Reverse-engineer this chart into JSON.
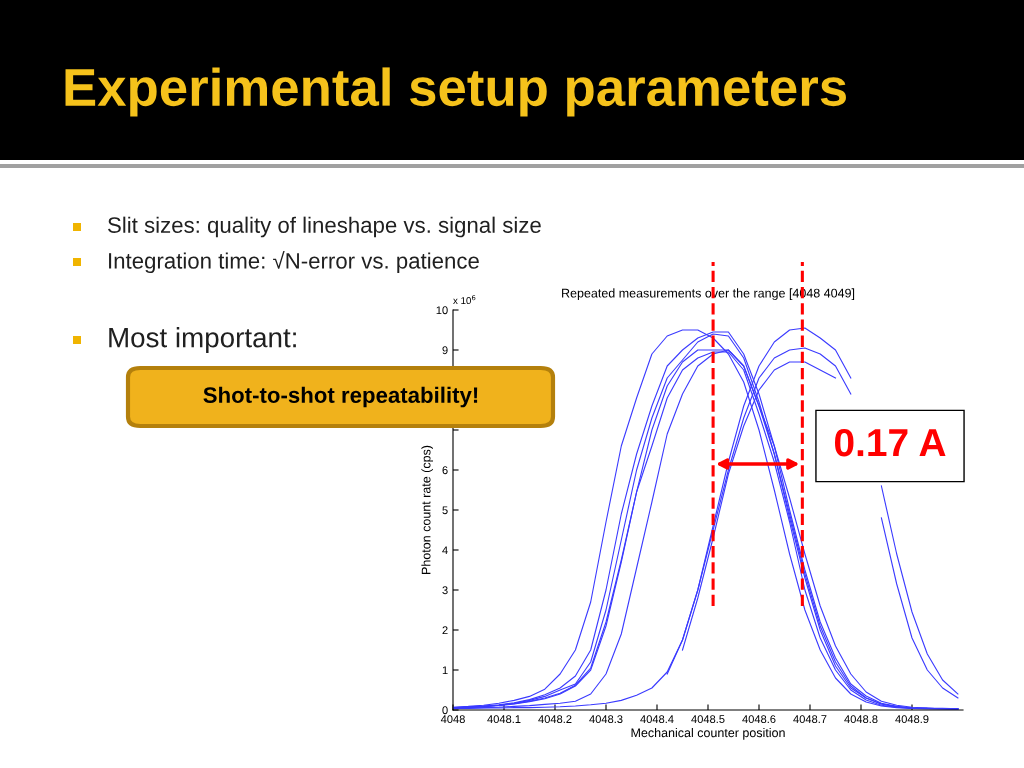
{
  "chart_data": {
    "type": "line",
    "title": "Experimental setup parameters",
    "subtitle": "Repeated measurements over the range [4048 4049]",
    "xlabel": "Mechanical counter position",
    "ylabel": "Photon count rate (cps)",
    "annotations": [
      "Slit sizes: quality of lineshape vs. signal size",
      "Integration time: √N-error vs. patience",
      "Most important:",
      "Shot-to-shot repeatability!",
      "0.17 A",
      "x 10$^{6}$"
    ],
    "x": [
      4048.0,
      4048.03,
      4048.06,
      4048.09,
      4048.12,
      4048.15,
      4048.18,
      4048.21,
      4048.24,
      4048.27,
      4048.3,
      4048.33,
      4048.36,
      4048.39,
      4048.42,
      4048.45,
      4048.48,
      4048.51,
      4048.54,
      4048.57,
      4048.6,
      4048.63,
      4048.66,
      4048.69,
      4048.72,
      4048.75,
      4048.78,
      4048.81,
      4048.84,
      4048.87,
      4048.9,
      4048.93,
      4048.96,
      4048.99
    ],
    "series": [
      {
        "color": "#3a3aff",
        "values": [
          0.07,
          0.09,
          0.12,
          0.17,
          0.24,
          0.34,
          0.52,
          0.9,
          1.5,
          2.7,
          4.7,
          6.6,
          7.8,
          8.9,
          9.35,
          9.5,
          9.5,
          9.3,
          8.9,
          8.2,
          7.0,
          5.5,
          3.9,
          2.5,
          1.5,
          0.8,
          0.4,
          0.2,
          0.1,
          0.06,
          0.04,
          0.03,
          0.03,
          0.02
        ]
      },
      {
        "color": "#3a3aff",
        "values": [
          0.06,
          0.08,
          0.1,
          0.13,
          0.18,
          0.26,
          0.38,
          0.55,
          0.85,
          1.5,
          3.0,
          4.9,
          6.4,
          7.6,
          8.6,
          9.0,
          9.3,
          9.45,
          9.45,
          8.9,
          7.9,
          6.6,
          5.0,
          3.5,
          2.2,
          1.3,
          0.65,
          0.35,
          0.17,
          0.09,
          0.05,
          0.04,
          0.03,
          0.03
        ]
      },
      {
        "color": "#3a3aff",
        "values": [
          0.05,
          0.07,
          0.09,
          0.12,
          0.17,
          0.24,
          0.34,
          0.5,
          0.65,
          1.2,
          2.5,
          4.25,
          6.0,
          7.3,
          8.3,
          8.75,
          9.2,
          9.4,
          9.35,
          8.8,
          7.7,
          6.4,
          4.9,
          3.4,
          2.1,
          1.2,
          0.6,
          0.3,
          0.15,
          0.08,
          0.05,
          0.04,
          0.03,
          0.03
        ]
      },
      {
        "color": "#3a3aff",
        "values": [
          0.04,
          0.07,
          0.09,
          0.12,
          0.16,
          0.22,
          0.3,
          0.42,
          0.62,
          1.05,
          2.2,
          3.75,
          5.45,
          7.0,
          8.1,
          8.7,
          9.0,
          9.0,
          9.0,
          8.6,
          7.6,
          6.4,
          4.8,
          3.3,
          2.0,
          1.1,
          0.55,
          0.3,
          0.15,
          0.08,
          0.05,
          0.04,
          0.03,
          0.03
        ]
      },
      {
        "color": "#3a3aff",
        "values": [
          0.05,
          0.06,
          0.08,
          0.11,
          0.15,
          0.21,
          0.28,
          0.4,
          0.6,
          1.0,
          2.1,
          3.7,
          5.45,
          6.6,
          7.8,
          8.5,
          8.8,
          8.95,
          8.95,
          8.5,
          7.4,
          6.2,
          4.7,
          3.0,
          1.8,
          1.0,
          0.5,
          0.25,
          0.12,
          0.07,
          0.04,
          0.03,
          0.03,
          0.02
        ]
      },
      {
        "color": "#3a3aff",
        "values": [
          0.04,
          0.05,
          0.06,
          0.07,
          0.09,
          0.11,
          0.14,
          0.17,
          0.22,
          0.4,
          0.9,
          1.9,
          3.55,
          5.2,
          6.9,
          7.9,
          8.6,
          8.9,
          9.0,
          8.6,
          7.6,
          6.6,
          5.3,
          3.9,
          2.6,
          1.6,
          0.9,
          0.45,
          0.22,
          0.12,
          0.07,
          0.05,
          0.04,
          0.03
        ]
      },
      {
        "color": "#3a3aff",
        "values": [
          0.04,
          0.04,
          0.05,
          0.05,
          0.06,
          0.06,
          0.07,
          0.08,
          0.1,
          0.13,
          0.17,
          0.24,
          0.37,
          0.55,
          0.95,
          1.75,
          3.0,
          4.6,
          6.2,
          7.6,
          8.6,
          9.2,
          9.5,
          9.55,
          9.3,
          9.0,
          8.3,
          null,
          5.6,
          3.9,
          2.45,
          1.4,
          0.75,
          0.4
        ]
      },
      {
        "color": "#3a3aff",
        "x": [
          4048.42,
          4048.45,
          4048.48,
          4048.51,
          4048.54,
          4048.57,
          4048.6,
          4048.63,
          4048.66,
          4048.69,
          4048.72,
          4048.75,
          4048.78,
          4048.81,
          4048.84,
          4048.87,
          4048.9,
          4048.93,
          4048.96,
          4048.99
        ],
        "values": [
          0.9,
          1.75,
          3.0,
          4.5,
          6.0,
          7.3,
          8.3,
          8.8,
          9.0,
          9.05,
          8.9,
          8.6,
          7.9,
          null,
          4.8,
          3.15,
          1.8,
          1.0,
          0.55,
          0.3
        ]
      },
      {
        "color": "#3a3aff",
        "x": [
          4048.45,
          4048.48,
          4048.51,
          4048.54,
          4048.57,
          4048.6,
          4048.63,
          4048.66,
          4048.69,
          4048.72,
          4048.75
        ],
        "values": [
          1.5,
          2.8,
          4.3,
          5.9,
          7.1,
          8.0,
          8.5,
          8.7,
          8.7,
          8.5,
          8.3
        ]
      }
    ],
    "xlim": [
      4048,
      4049
    ],
    "xticks": [
      4048,
      4048.1,
      4048.2,
      4048.3,
      4048.4,
      4048.5,
      4048.6,
      4048.7,
      4048.8,
      4048.9
    ],
    "ylim": [
      0,
      10
    ],
    "yticks": [
      0,
      1,
      2,
      3,
      4,
      5,
      6,
      {
        "value": 7,
        "label": null
      },
      {
        "value": 8,
        "label": null
      },
      9,
      10
    ],
    "ref_lines": [
      {
        "axis": "x",
        "value": 4048.51,
        "color": "#ff0000",
        "line_style": "dashed"
      },
      {
        "axis": "x",
        "value": 4048.685,
        "color": "#ff0000",
        "line_style": "dashed"
      }
    ],
    "grid": false
  }
}
